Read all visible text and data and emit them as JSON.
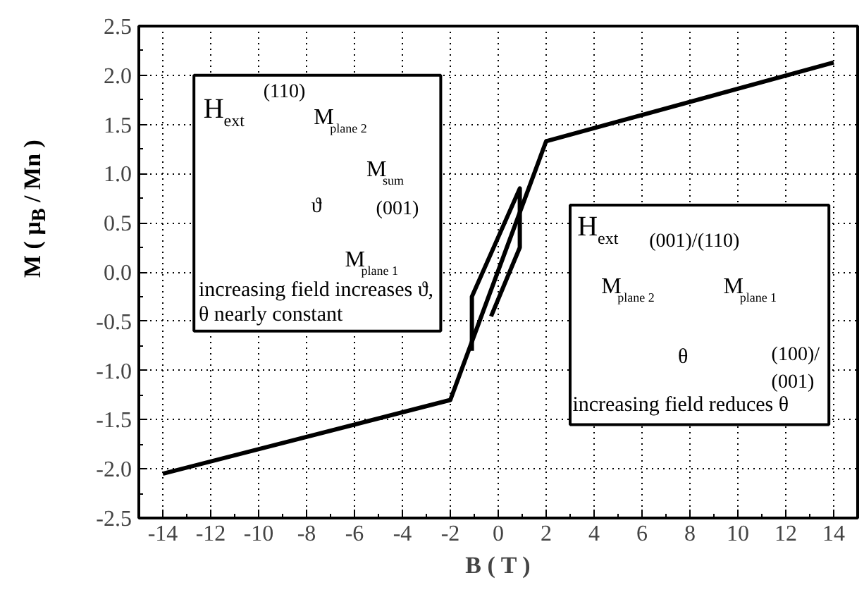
{
  "chart_data": {
    "type": "line",
    "xlabel": "B ( T )",
    "ylabel": "M ( μ$_{B}$ / Mn )",
    "series": [
      {
        "color": "#000000",
        "x": [
          -14,
          -2,
          2,
          14
        ],
        "values": [
          -2.05,
          -1.3,
          1.33,
          2.13
        ]
      },
      {
        "color": "#000000",
        "x": [
          -1.1,
          -1.1,
          0.9,
          0.9,
          -0.3
        ],
        "values": [
          -0.8,
          -0.25,
          0.85,
          0.25,
          -0.45
        ]
      }
    ],
    "xlim": [
      -15,
      15
    ],
    "ylim": [
      -2.5,
      2.5
    ],
    "xticks": [
      -14,
      -12,
      -10,
      -8,
      -6,
      -4,
      -2,
      0,
      2,
      4,
      6,
      8,
      10,
      12,
      14
    ],
    "yticks": [
      {
        "value": -2.5,
        "label": "-2.5"
      },
      {
        "value": -2,
        "label": "-2.0"
      },
      {
        "value": -1.5,
        "label": "-1.5"
      },
      {
        "value": -1,
        "label": "-1.0"
      },
      {
        "value": -0.5,
        "label": "-0.5"
      },
      {
        "value": 0,
        "label": "0.0"
      },
      {
        "value": 0.5,
        "label": "0.5"
      },
      {
        "value": 1,
        "label": "1.0"
      },
      {
        "value": 1.5,
        "label": "1.5"
      },
      {
        "value": 2,
        "label": "2.0"
      },
      {
        "value": 2.5,
        "label": "2.5"
      }
    ],
    "grid": true,
    "line_style": "solid",
    "marker": "none",
    "annotations": [
      "H$_{ext}$",
      "(110)",
      "M$_{plane 2}$",
      "M$_{sum}$",
      "ϑ",
      "(001)",
      "M$_{plane 1}$",
      "increasing field increases ϑ,",
      "θ nearly constant",
      "H$_{ext}$",
      "(001)/(110)",
      "M$_{plane 2}$",
      "M$_{plane 1}$",
      "θ",
      "(100)/",
      "(001)",
      "increasing field reduces θ"
    ]
  }
}
